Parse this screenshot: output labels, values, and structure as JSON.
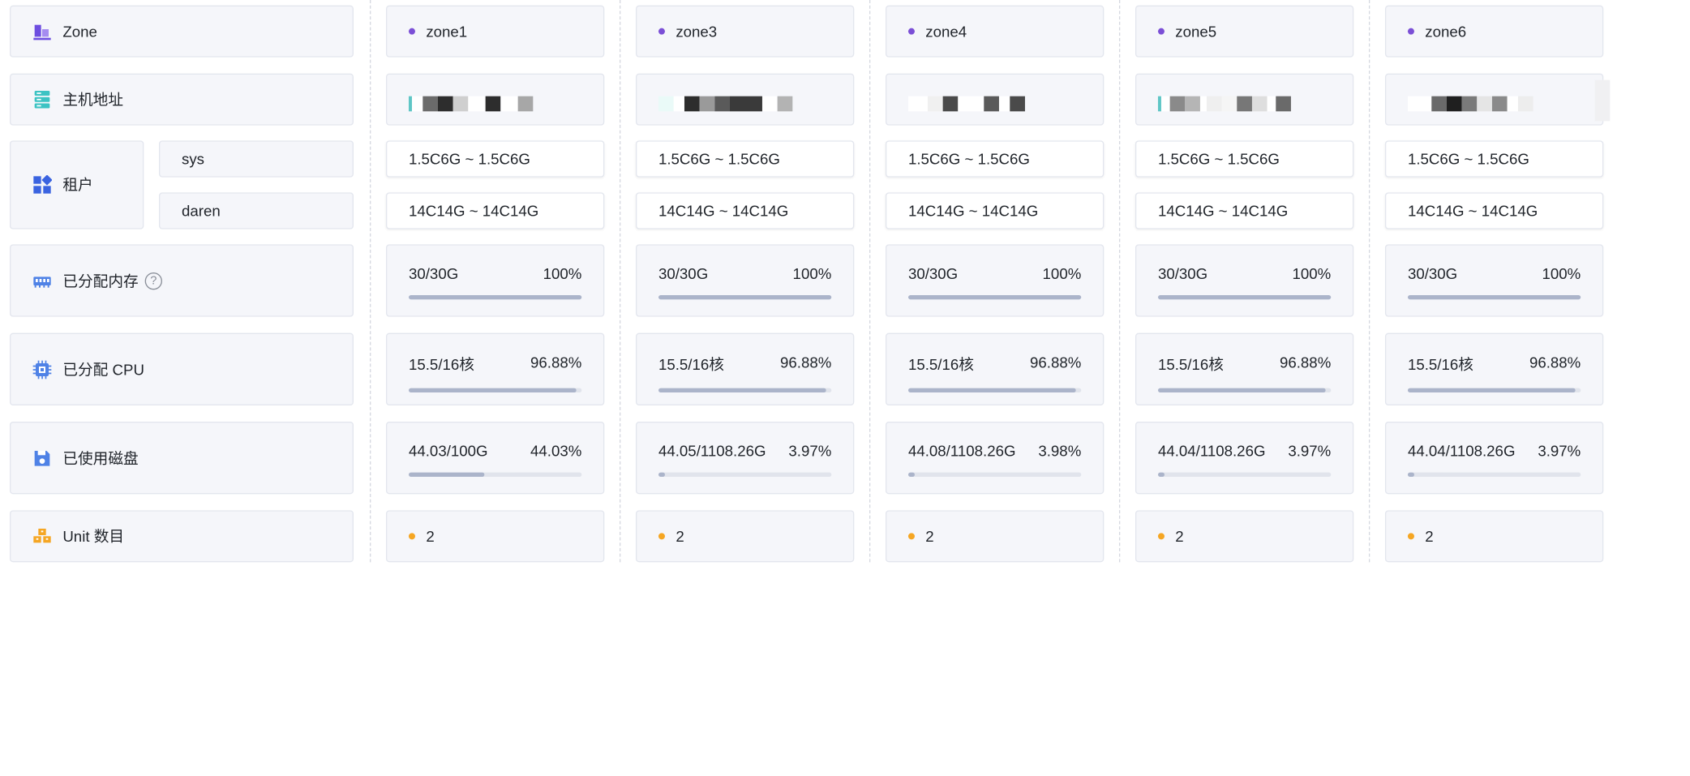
{
  "labels": {
    "zone": "Zone",
    "host": "主机地址",
    "tenant": "租户",
    "tenant_sys": "sys",
    "tenant_daren": "daren",
    "memory": "已分配内存",
    "memory_help": "?",
    "cpu": "已分配 CPU",
    "disk": "已使用磁盘",
    "unit": "Unit 数目"
  },
  "colors": {
    "zone_dot": "#7b4fd6",
    "unit_dot": "#f5a623",
    "bar_fill": "#abb4ca"
  },
  "icons": {
    "zone": "bar-chart-icon",
    "host": "server-icon",
    "tenant": "apps-icon",
    "memory": "memory-icon",
    "cpu": "chip-icon",
    "disk": "disk-icon",
    "unit": "boxes-icon"
  },
  "zones": [
    {
      "name": "zone1",
      "sys": "1.5C6G ~ 1.5C6G",
      "daren": "14C14G ~ 14C14G",
      "mem_value": "30/30G",
      "mem_pct": "100%",
      "mem_frac": 1.0,
      "cpu_value": "15.5/16核",
      "cpu_pct": "96.88%",
      "cpu_frac": 0.9688,
      "disk_value": "44.03/100G",
      "disk_pct": "44.03%",
      "disk_frac": 0.4403,
      "units": "2"
    },
    {
      "name": "zone3",
      "sys": "1.5C6G ~ 1.5C6G",
      "daren": "14C14G ~ 14C14G",
      "mem_value": "30/30G",
      "mem_pct": "100%",
      "mem_frac": 1.0,
      "cpu_value": "15.5/16核",
      "cpu_pct": "96.88%",
      "cpu_frac": 0.9688,
      "disk_value": "44.05/1108.26G",
      "disk_pct": "3.97%",
      "disk_frac": 0.0397,
      "units": "2"
    },
    {
      "name": "zone4",
      "sys": "1.5C6G ~ 1.5C6G",
      "daren": "14C14G ~ 14C14G",
      "mem_value": "30/30G",
      "mem_pct": "100%",
      "mem_frac": 1.0,
      "cpu_value": "15.5/16核",
      "cpu_pct": "96.88%",
      "cpu_frac": 0.9688,
      "disk_value": "44.08/1108.26G",
      "disk_pct": "3.98%",
      "disk_frac": 0.0398,
      "units": "2"
    },
    {
      "name": "zone5",
      "sys": "1.5C6G ~ 1.5C6G",
      "daren": "14C14G ~ 14C14G",
      "mem_value": "30/30G",
      "mem_pct": "100%",
      "mem_frac": 1.0,
      "cpu_value": "15.5/16核",
      "cpu_pct": "96.88%",
      "cpu_frac": 0.9688,
      "disk_value": "44.04/1108.26G",
      "disk_pct": "3.97%",
      "disk_frac": 0.0397,
      "units": "2"
    },
    {
      "name": "zone6",
      "sys": "1.5C6G ~ 1.5C6G",
      "daren": "14C14G ~ 14C14G",
      "mem_value": "30/30G",
      "mem_pct": "100%",
      "mem_frac": 1.0,
      "cpu_value": "15.5/16核",
      "cpu_pct": "96.88%",
      "cpu_frac": 0.9688,
      "disk_value": "44.04/1108.26G",
      "disk_pct": "3.97%",
      "disk_frac": 0.0397,
      "units": "2"
    }
  ]
}
